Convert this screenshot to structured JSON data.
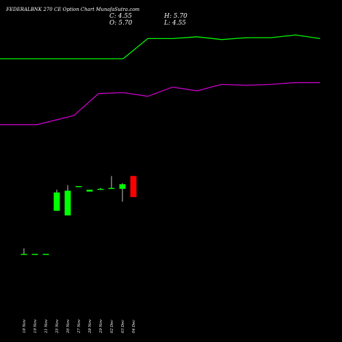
{
  "header": {
    "title": "FEDERALBNK 270  CE Option  Chart MunafaSutra.com",
    "close_label": "C: 4.55",
    "open_label": "O: 5.70",
    "high_label": "H: 5.70",
    "low_label": "L: 4.55"
  },
  "colors": {
    "background": "#000000",
    "up": "#00ff00",
    "down": "#ff0000",
    "line_upper": "#00ff00",
    "line_lower": "#cc00cc",
    "wick": "#ffffff",
    "text": "#ffffff"
  },
  "chart_data": {
    "type": "candlestick",
    "categories": [
      "18 Nov",
      "19 Nov",
      "21 Nov",
      "25 Nov",
      "26 Nov",
      "27 Nov",
      "28 Nov",
      "29 Nov",
      "02 Dec",
      "03 Dec",
      "04 Dec"
    ],
    "candles": [
      {
        "open": 1.45,
        "high": 1.75,
        "low": 1.45,
        "close": 1.45,
        "color": "up"
      },
      {
        "open": 1.45,
        "high": 1.45,
        "low": 1.45,
        "close": 1.45,
        "color": "up"
      },
      {
        "open": 1.45,
        "high": 1.45,
        "low": 1.45,
        "close": 1.45,
        "color": "up"
      },
      {
        "open": 3.8,
        "high": 4.95,
        "low": 3.8,
        "close": 4.8,
        "color": "up"
      },
      {
        "open": 3.55,
        "high": 5.2,
        "low": 3.55,
        "close": 4.9,
        "color": "up"
      },
      {
        "open": 5.1,
        "high": 5.1,
        "low": 5.1,
        "close": 5.15,
        "color": "up"
      },
      {
        "open": 4.85,
        "high": 4.95,
        "low": 4.85,
        "close": 4.95,
        "color": "up"
      },
      {
        "open": 4.95,
        "high": 5.05,
        "low": 4.95,
        "close": 5.0,
        "color": "up"
      },
      {
        "open": 5.0,
        "high": 5.7,
        "low": 5.0,
        "close": 5.05,
        "color": "up"
      },
      {
        "open": 5.0,
        "high": 5.3,
        "low": 4.3,
        "close": 5.25,
        "color": "up"
      },
      {
        "open": 5.7,
        "high": 5.7,
        "low": 4.55,
        "close": 4.55,
        "color": "down"
      }
    ],
    "lines": [
      {
        "color": "#00ff00",
        "x": [
          0,
          1.5,
          3,
          4,
          5,
          6,
          7,
          8,
          9,
          10,
          11,
          12,
          13
        ],
        "y": [
          12.1,
          12.1,
          12.1,
          12.1,
          12.1,
          13.2,
          13.2,
          13.3,
          13.15,
          13.25,
          13.25,
          13.4,
          13.2
        ]
      },
      {
        "color": "#cc00cc",
        "x": [
          0,
          1.5,
          3,
          4,
          5,
          6,
          7,
          8,
          9,
          10,
          11,
          12,
          13
        ],
        "y": [
          8.5,
          8.5,
          9.0,
          10.2,
          10.25,
          10.05,
          10.55,
          10.35,
          10.7,
          10.65,
          10.7,
          10.8,
          10.8
        ]
      }
    ],
    "ylim": [
      0,
      14
    ],
    "grid": false,
    "legend": "none"
  }
}
